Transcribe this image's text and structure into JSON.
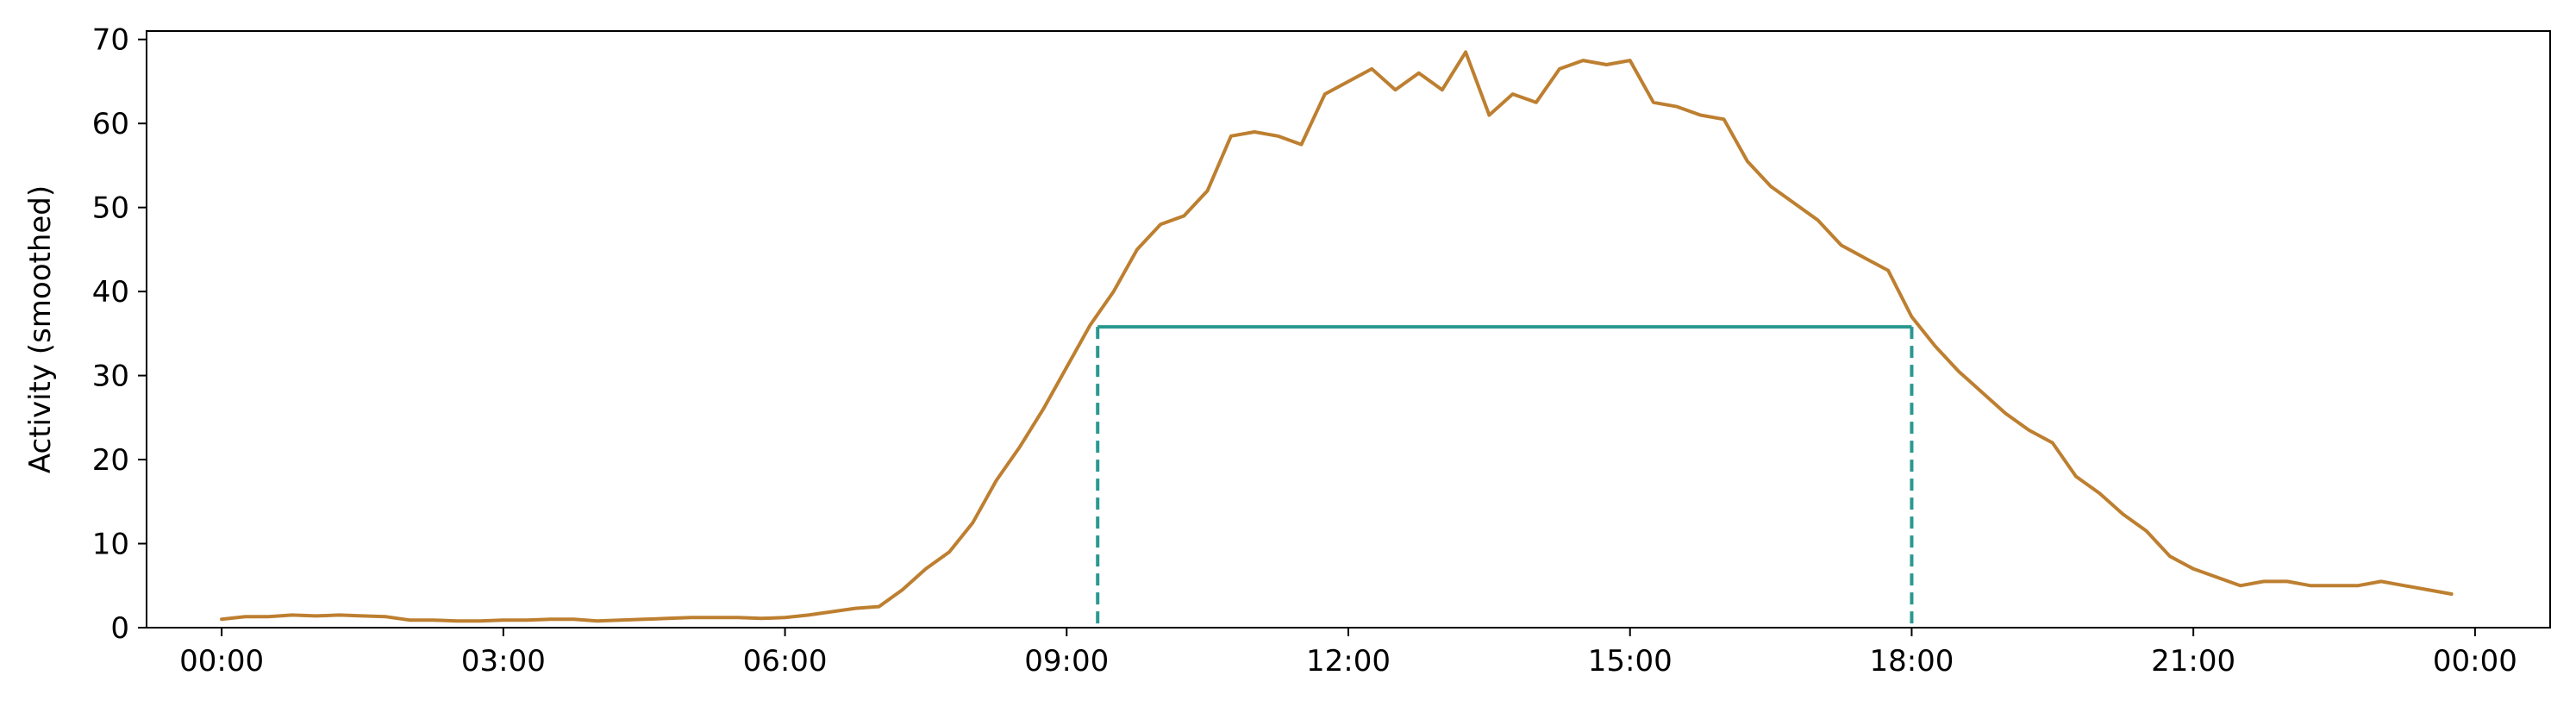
{
  "chart_data": {
    "type": "line",
    "title": "",
    "xlabel": "",
    "ylabel": "Activity (smoothed)",
    "xlim": [
      -0.8,
      24.8
    ],
    "ylim": [
      0,
      71
    ],
    "grid": false,
    "x_ticks": [
      {
        "value": 0,
        "label": "00:00"
      },
      {
        "value": 3,
        "label": "03:00"
      },
      {
        "value": 6,
        "label": "06:00"
      },
      {
        "value": 9,
        "label": "09:00"
      },
      {
        "value": 12,
        "label": "12:00"
      },
      {
        "value": 15,
        "label": "15:00"
      },
      {
        "value": 18,
        "label": "18:00"
      },
      {
        "value": 21,
        "label": "21:00"
      },
      {
        "value": 24,
        "label": "00:00"
      }
    ],
    "y_ticks": [
      0,
      10,
      20,
      30,
      40,
      50,
      60,
      70
    ],
    "series": [
      {
        "color": "#bd7f30",
        "x": [
          0.0,
          0.25,
          0.5,
          0.75,
          1.0,
          1.25,
          1.5,
          1.75,
          2.0,
          2.25,
          2.5,
          2.75,
          3.0,
          3.25,
          3.5,
          3.75,
          4.0,
          4.25,
          4.5,
          4.75,
          5.0,
          5.25,
          5.5,
          5.75,
          6.0,
          6.25,
          6.5,
          6.75,
          7.0,
          7.25,
          7.5,
          7.75,
          8.0,
          8.25,
          8.5,
          8.75,
          9.0,
          9.25,
          9.5,
          9.75,
          10.0,
          10.25,
          10.5,
          10.75,
          11.0,
          11.25,
          11.5,
          11.75,
          12.0,
          12.25,
          12.5,
          12.75,
          13.0,
          13.25,
          13.5,
          13.75,
          14.0,
          14.25,
          14.5,
          14.75,
          15.0,
          15.25,
          15.5,
          15.75,
          16.0,
          16.25,
          16.5,
          16.75,
          17.0,
          17.25,
          17.5,
          17.75,
          18.0,
          18.25,
          18.5,
          18.75,
          19.0,
          19.25,
          19.5,
          19.75,
          20.0,
          20.25,
          20.5,
          20.75,
          21.0,
          21.25,
          21.5,
          21.75,
          22.0,
          22.25,
          22.5,
          22.75,
          23.0,
          23.25,
          23.5,
          23.75
        ],
        "y": [
          1.0,
          1.3,
          1.3,
          1.5,
          1.4,
          1.5,
          1.4,
          1.3,
          0.9,
          0.9,
          0.8,
          0.8,
          0.9,
          0.9,
          1.0,
          1.0,
          0.8,
          0.9,
          1.0,
          1.1,
          1.2,
          1.2,
          1.2,
          1.1,
          1.2,
          1.5,
          1.9,
          2.3,
          2.5,
          4.5,
          7.0,
          9.0,
          12.5,
          17.5,
          21.5,
          26.0,
          31.0,
          36.0,
          40.0,
          45.0,
          48.0,
          49.0,
          52.0,
          58.5,
          59.0,
          58.5,
          57.5,
          63.5,
          65.0,
          66.5,
          64.0,
          66.0,
          64.0,
          68.5,
          61.0,
          63.5,
          62.5,
          66.5,
          67.5,
          67.0,
          67.5,
          62.5,
          62.0,
          61.0,
          60.5,
          55.5,
          52.5,
          50.5,
          48.5,
          45.5,
          44.0,
          42.5,
          37.0,
          33.5,
          30.5,
          28.0,
          25.5,
          23.5,
          22.0,
          18.0,
          16.0,
          13.5,
          11.5,
          8.5,
          7.0,
          6.0,
          5.0,
          5.5,
          5.5,
          5.0,
          5.0,
          5.0,
          5.5,
          5.0,
          4.5,
          4.0
        ]
      }
    ],
    "annotations": {
      "color": "#2a9890",
      "level": 35.8,
      "start": 9.33,
      "end": 18.0
    }
  }
}
